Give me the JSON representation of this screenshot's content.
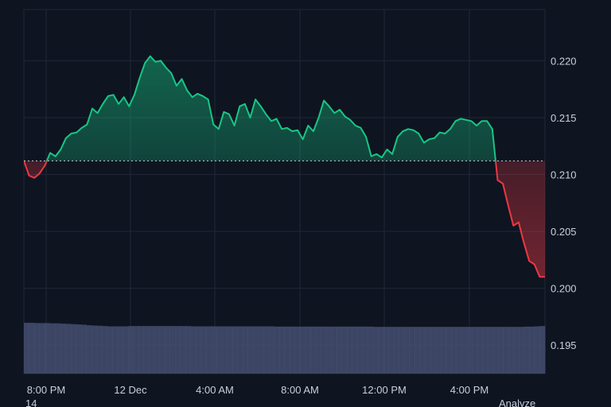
{
  "colors": {
    "background": "#0f1421",
    "grid": "#1f2838",
    "up": "#16c784",
    "down": "#ea3943",
    "volume": "#4c5679",
    "baseline": "#e8ecf4"
  },
  "footer": {
    "fragment_left": "14",
    "fragment_right": "Analyze"
  },
  "chart_data": {
    "type": "line",
    "x_ticks": [
      "8:00 PM",
      "12 Dec",
      "4:00 AM",
      "8:00 AM",
      "12:00 PM",
      "4:00 PM"
    ],
    "y_ticks": [
      "0.220",
      "0.215",
      "0.210",
      "0.205",
      "0.200",
      "0.195"
    ],
    "ylim": [
      0.1925,
      0.2245
    ],
    "baseline": 0.2112,
    "grid": true,
    "series": [
      {
        "values": [
          0.2112,
          0.2099,
          0.2097,
          0.2101,
          0.2108,
          0.2119,
          0.2116,
          0.2122,
          0.2132,
          0.2136,
          0.2137,
          0.2141,
          0.2144,
          0.2158,
          0.2154,
          0.2162,
          0.2169,
          0.217,
          0.2162,
          0.2168,
          0.216,
          0.217,
          0.2185,
          0.2198,
          0.2204,
          0.2199,
          0.22,
          0.2194,
          0.2189,
          0.2178,
          0.2184,
          0.2174,
          0.2168,
          0.2171,
          0.2169,
          0.2166,
          0.2144,
          0.214,
          0.2155,
          0.2153,
          0.2143,
          0.216,
          0.2162,
          0.215,
          0.2166,
          0.216,
          0.2153,
          0.2147,
          0.2149,
          0.214,
          0.2141,
          0.2138,
          0.2139,
          0.2131,
          0.2143,
          0.2138,
          0.215,
          0.2165,
          0.216,
          0.2154,
          0.2157,
          0.2151,
          0.2148,
          0.2143,
          0.2141,
          0.2133,
          0.2116,
          0.2118,
          0.2115,
          0.2122,
          0.2118,
          0.2133,
          0.2138,
          0.214,
          0.2139,
          0.2136,
          0.2128,
          0.2131,
          0.2132,
          0.2137,
          0.2136,
          0.214,
          0.2147,
          0.2149,
          0.2148,
          0.2147,
          0.2143,
          0.2147,
          0.2147,
          0.214,
          0.2095,
          0.2092,
          0.2073,
          0.2055,
          0.2058,
          0.204,
          0.2024,
          0.2021,
          0.201,
          0.201
        ],
        "volume": [
          18.8,
          18.8,
          18.7,
          18.7,
          18.7,
          18.6,
          18.6,
          18.5,
          18.4,
          18.3,
          18.2,
          18.1,
          17.9,
          17.8,
          17.7,
          17.6,
          17.5,
          17.5,
          17.5,
          17.5,
          17.6,
          17.6,
          17.6,
          17.6,
          17.6,
          17.6,
          17.6,
          17.6,
          17.6,
          17.6,
          17.6,
          17.6,
          17.5,
          17.5,
          17.5,
          17.5,
          17.5,
          17.5,
          17.5,
          17.5,
          17.5,
          17.5,
          17.5,
          17.5,
          17.5,
          17.5,
          17.5,
          17.5,
          17.4,
          17.4,
          17.4,
          17.4,
          17.4,
          17.4,
          17.4,
          17.4,
          17.4,
          17.4,
          17.4,
          17.4,
          17.4,
          17.4,
          17.4,
          17.4,
          17.4,
          17.4,
          17.4,
          17.3,
          17.3,
          17.3,
          17.3,
          17.3,
          17.3,
          17.3,
          17.3,
          17.3,
          17.3,
          17.3,
          17.3,
          17.3,
          17.3,
          17.3,
          17.3,
          17.3,
          17.3,
          17.3,
          17.3,
          17.3,
          17.3,
          17.3,
          17.3,
          17.3,
          17.3,
          17.3,
          17.3,
          17.3,
          17.4,
          17.4,
          17.5,
          17.6
        ]
      }
    ]
  }
}
